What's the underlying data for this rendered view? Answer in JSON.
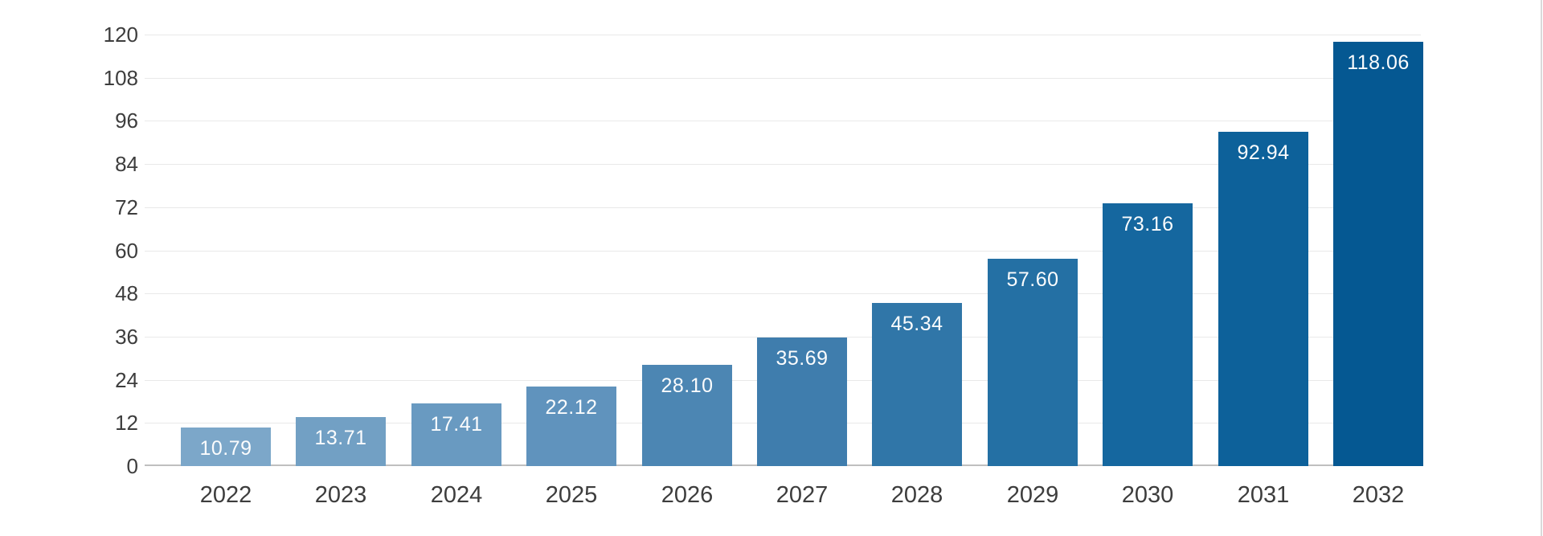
{
  "chart_data": {
    "type": "bar",
    "title": "",
    "xlabel": "",
    "ylabel": "",
    "categories": [
      "2022",
      "2023",
      "2024",
      "2025",
      "2026",
      "2027",
      "2028",
      "2029",
      "2030",
      "2031",
      "2032"
    ],
    "values": [
      10.79,
      13.71,
      17.41,
      22.12,
      28.1,
      35.69,
      45.34,
      57.6,
      73.16,
      92.94,
      118.06
    ],
    "value_labels": [
      "10.79",
      "13.71",
      "17.41",
      "22.12",
      "28.10",
      "35.69",
      "45.34",
      "57.60",
      "73.16",
      "92.94",
      "118.06"
    ],
    "bar_colors": [
      "#7ca7c9",
      "#72a0c4",
      "#699ac1",
      "#6093bd",
      "#4c86b3",
      "#3f7dad",
      "#3076a8",
      "#2470a4",
      "#15679f",
      "#0d619a",
      "#055892"
    ],
    "yticks": [
      0,
      12,
      24,
      36,
      48,
      60,
      72,
      84,
      96,
      108,
      120
    ],
    "ylim": [
      0,
      120
    ],
    "grid": true,
    "legend_position": "none",
    "colors": {
      "background": "#ffffff",
      "grid_color": "#e9e9e9",
      "axis_line_color": "#bfbfbf",
      "axis_label_color": "#3d3d3d",
      "bar_label_color": "#fbfcfd",
      "right_edge_color": "#d9d9d9"
    }
  }
}
